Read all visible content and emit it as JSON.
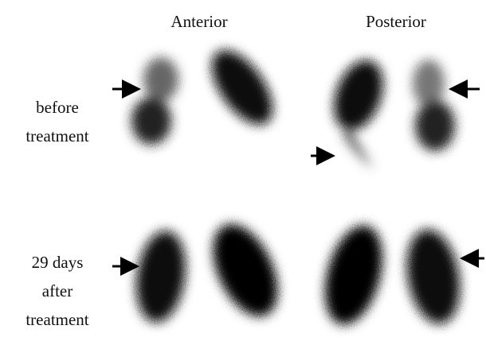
{
  "columns": [
    "Anterior",
    "Posterior"
  ],
  "rows": [
    {
      "label_lines": [
        "before",
        "treatment"
      ]
    },
    {
      "label_lines": [
        "29 days",
        "after",
        "treatment"
      ]
    }
  ]
}
